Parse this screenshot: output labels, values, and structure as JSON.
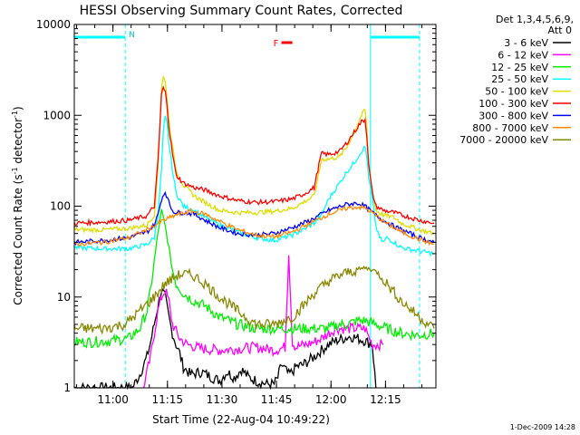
{
  "chart_data": {
    "type": "line",
    "title": "HESSI Observing Summary Count Rates, Corrected",
    "xlabel": "Start Time (22-Aug-04 10:49:22)",
    "ylabel_main": "Corrected Count Rate (s",
    "ylabel_sup1": "-1",
    "ylabel_mid": " detector",
    "ylabel_sup2": "-1",
    "ylabel_end": ")",
    "y_scale": "log",
    "ylim": [
      1,
      10000
    ],
    "x_units": "minutes after 10:49:22",
    "xlim": [
      0,
      99.5
    ],
    "x_ticks": [
      {
        "t": 10.63,
        "label": "11:00"
      },
      {
        "t": 25.63,
        "label": "11:15"
      },
      {
        "t": 40.63,
        "label": "11:30"
      },
      {
        "t": 55.63,
        "label": "11:45"
      },
      {
        "t": 70.63,
        "label": "12:00"
      },
      {
        "t": 85.63,
        "label": "12:15"
      }
    ],
    "y_ticks": [
      {
        "v": 1,
        "label": "1"
      },
      {
        "v": 10,
        "label": "10"
      },
      {
        "v": 100,
        "label": "100"
      },
      {
        "v": 1000,
        "label": "1000"
      },
      {
        "v": 10000,
        "label": "10000"
      }
    ],
    "detector_text_1": "Det 1,3,4,5,6,9,",
    "detector_text_2": "Att 0",
    "night_bars": [
      [
        0,
        14
      ],
      [
        81.5,
        95
      ]
    ],
    "night_marker": "N",
    "flare_marker": "F",
    "flare_marker_x": [
      57,
      60
    ],
    "footer_date": "1-Dec-2009 14:28",
    "series": [
      {
        "name": "3 - 6 keV",
        "color": "#000000",
        "x": [
          0,
          16,
          18,
          20,
          21,
          22,
          23,
          24,
          25,
          26,
          27,
          28,
          29,
          30,
          32,
          35,
          38,
          40,
          42,
          44,
          46,
          48,
          50,
          53,
          55,
          56,
          57,
          58,
          59,
          60,
          61,
          63,
          66,
          68,
          70,
          72,
          74,
          76,
          78,
          80,
          82,
          83
        ],
        "y": [
          1,
          1,
          1.4,
          2.2,
          3.2,
          5,
          8,
          12,
          10,
          6,
          4,
          3,
          2.4,
          1.7,
          1.4,
          1.5,
          1.3,
          1.2,
          1.5,
          1.3,
          1.6,
          1.3,
          1.2,
          1.1,
          1.1,
          1.3,
          1.8,
          1.6,
          1.4,
          1.5,
          1.7,
          1.8,
          2.2,
          2.6,
          3,
          3.3,
          3.5,
          3.7,
          3.5,
          3.3,
          3,
          1
        ]
      },
      {
        "name": "6 - 12 keV",
        "color": "#ff00ff",
        "x": [
          19,
          21,
          22,
          23,
          24,
          25,
          26,
          27,
          29,
          31,
          35,
          40,
          45,
          50,
          55,
          58,
          59,
          60,
          61,
          62,
          64,
          66,
          68,
          70,
          72,
          74,
          76,
          78,
          80,
          82,
          84,
          85
        ],
        "y": [
          1,
          2.2,
          4,
          7,
          10,
          12,
          9,
          5,
          3.5,
          3,
          2.7,
          2.6,
          2.7,
          2.8,
          2.6,
          2.8,
          30,
          3.2,
          2.8,
          2.9,
          3,
          3.2,
          3.5,
          4,
          4.5,
          4.5,
          4.5,
          4.5,
          4.5,
          3,
          3,
          3
        ]
      },
      {
        "name": "12 - 25 keV",
        "color": "#00ee00",
        "x": [
          0,
          5,
          10,
          15,
          18,
          20,
          21,
          22,
          23,
          24,
          25,
          26,
          27,
          28,
          30,
          33,
          36,
          40,
          45,
          50,
          55,
          60,
          65,
          70,
          73,
          75,
          78,
          80,
          83,
          86,
          90,
          95,
          99
        ],
        "y": [
          3.2,
          3.2,
          3.3,
          3.5,
          4.5,
          7,
          12,
          25,
          50,
          90,
          60,
          35,
          20,
          14,
          11,
          9,
          8,
          6,
          5,
          4.5,
          4.5,
          4.5,
          4.5,
          4.5,
          5,
          5,
          5.5,
          5.5,
          5,
          4.5,
          4,
          3.8,
          4
        ]
      },
      {
        "name": "25 - 50 keV",
        "color": "#00ffff",
        "x": [
          0,
          8,
          15,
          20,
          22,
          23,
          24,
          24.5,
          25,
          25.5,
          26,
          27,
          28,
          30,
          33,
          36,
          40,
          45,
          50,
          55,
          60,
          63,
          66,
          68,
          70,
          73,
          75,
          77,
          78,
          79,
          80,
          80.5,
          81,
          82,
          83,
          84,
          85,
          86,
          88,
          90,
          95,
          99
        ],
        "y": [
          35,
          34,
          34,
          38,
          45,
          80,
          250,
          650,
          950,
          800,
          500,
          250,
          140,
          100,
          90,
          75,
          62,
          52,
          45,
          42,
          48,
          55,
          65,
          80,
          120,
          180,
          240,
          300,
          350,
          400,
          450,
          350,
          200,
          120,
          60,
          45,
          40,
          45,
          40,
          35,
          32,
          30
        ]
      },
      {
        "name": "50 - 100 keV",
        "color": "#dddd00",
        "x": [
          0,
          8,
          15,
          20,
          22,
          23,
          24,
          24.5,
          25,
          25.5,
          26,
          27,
          28,
          30,
          33,
          36,
          40,
          45,
          50,
          55,
          60,
          63,
          66,
          67,
          68,
          70,
          73,
          75,
          77,
          78,
          79,
          80,
          80.5,
          81,
          82,
          83,
          85,
          88,
          90,
          95,
          99
        ],
        "y": [
          55,
          55,
          57,
          62,
          80,
          250,
          2000,
          2700,
          2300,
          1600,
          900,
          450,
          250,
          170,
          130,
          110,
          90,
          85,
          85,
          88,
          95,
          110,
          130,
          200,
          330,
          330,
          350,
          450,
          650,
          800,
          1000,
          1150,
          700,
          300,
          150,
          90,
          80,
          75,
          65,
          55,
          50
        ]
      },
      {
        "name": "100 - 300 keV",
        "color": "#ff0000",
        "x": [
          0,
          8,
          15,
          20,
          22,
          23,
          24,
          24.5,
          25,
          25.5,
          26,
          27,
          28,
          30,
          33,
          36,
          40,
          45,
          50,
          55,
          60,
          63,
          66,
          67,
          68,
          70,
          73,
          75,
          77,
          78,
          79,
          80,
          80.5,
          81,
          82,
          83,
          85,
          88,
          90,
          95,
          99
        ],
        "y": [
          65,
          67,
          70,
          78,
          100,
          300,
          1700,
          2000,
          1800,
          1300,
          750,
          380,
          220,
          180,
          160,
          150,
          130,
          115,
          110,
          112,
          120,
          135,
          160,
          250,
          380,
          370,
          400,
          500,
          650,
          750,
          850,
          900,
          600,
          280,
          140,
          100,
          90,
          85,
          80,
          70,
          65
        ]
      },
      {
        "name": "300 - 800 keV",
        "color": "#0000ff",
        "x": [
          0,
          8,
          15,
          20,
          22,
          23,
          24,
          25,
          26,
          27,
          28,
          30,
          33,
          36,
          40,
          45,
          50,
          55,
          60,
          65,
          70,
          75,
          78,
          80,
          82,
          85,
          88,
          90,
          95,
          99
        ],
        "y": [
          40,
          42,
          45,
          52,
          62,
          80,
          120,
          145,
          110,
          90,
          85,
          85,
          82,
          70,
          58,
          50,
          48,
          50,
          58,
          70,
          90,
          105,
          108,
          100,
          85,
          70,
          60,
          55,
          45,
          40
        ]
      },
      {
        "name": "800 - 7000 keV",
        "color": "#ff8800",
        "x": [
          0,
          8,
          15,
          20,
          24,
          28,
          32,
          36,
          40,
          45,
          50,
          55,
          60,
          65,
          70,
          75,
          78,
          80,
          82,
          85,
          88,
          90,
          95,
          99
        ],
        "y": [
          38,
          40,
          45,
          55,
          68,
          80,
          88,
          82,
          68,
          55,
          48,
          46,
          52,
          65,
          82,
          95,
          98,
          95,
          85,
          68,
          58,
          52,
          43,
          38
        ]
      },
      {
        "name": "7000 - 20000 keV",
        "color": "#888800",
        "x": [
          0,
          8,
          14,
          18,
          22,
          25,
          28,
          30,
          33,
          36,
          40,
          45,
          50,
          55,
          60,
          63,
          66,
          70,
          74,
          78,
          80,
          82,
          84,
          86,
          90,
          95,
          99
        ],
        "y": [
          4.5,
          4.5,
          5,
          7,
          10,
          14,
          17,
          18,
          17,
          14,
          10,
          7,
          5,
          5,
          6,
          8,
          11,
          15,
          18,
          20,
          21,
          20,
          18,
          14,
          9,
          6,
          4.5
        ]
      }
    ]
  }
}
